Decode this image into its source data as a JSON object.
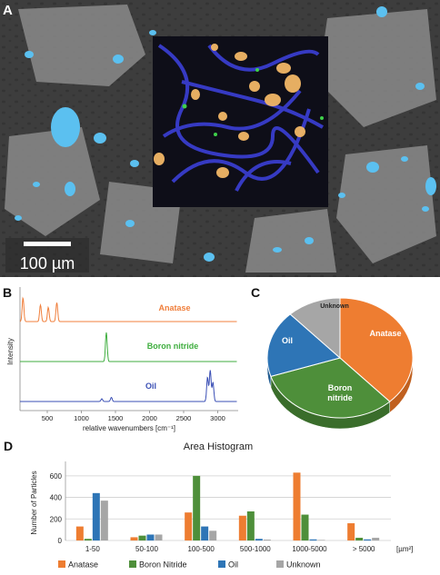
{
  "panels": {
    "a": {
      "letter": "A",
      "scalebar_label": "100 µm"
    },
    "b": {
      "letter": "B"
    },
    "c": {
      "letter": "C"
    },
    "d": {
      "letter": "D"
    }
  },
  "colors": {
    "anatase": "#ee7d31",
    "boron_nitride": "#4e8f3a",
    "oil": "#2e75b6",
    "unknown": "#a6a6a6",
    "raman_anatase": "#f07f3c",
    "raman_bn": "#3fae3f",
    "raman_oil": "#3a4fb5"
  },
  "chart_data": [
    {
      "type": "line",
      "panel": "B",
      "xlabel": "relative wavenumbers [cm⁻¹]",
      "ylabel": "Intensity",
      "xlim": [
        100,
        3300
      ],
      "xticks": [
        500,
        1000,
        1500,
        2000,
        2500,
        3000
      ],
      "series": [
        {
          "name": "Anatase",
          "peaks": [
            [
              144,
              1.0
            ],
            [
              400,
              0.7
            ],
            [
              515,
              0.6
            ],
            [
              640,
              0.8
            ]
          ]
        },
        {
          "name": "Boron nitride",
          "peaks": [
            [
              1366,
              1.0
            ]
          ]
        },
        {
          "name": "Oil",
          "peaks": [
            [
              1440,
              0.12
            ],
            [
              1300,
              0.08
            ],
            [
              2850,
              0.7
            ],
            [
              2890,
              0.9
            ],
            [
              2930,
              0.55
            ]
          ]
        }
      ]
    },
    {
      "type": "pie",
      "panel": "C",
      "labels": [
        "Anatase",
        "Boron nitride",
        "Oil",
        "Unknown"
      ],
      "values": [
        38,
        32,
        18,
        12
      ]
    },
    {
      "type": "bar",
      "panel": "D",
      "title": "Area Histogram",
      "ylabel": "Number of Particles",
      "categories": [
        "1-50",
        "50-100",
        "100-500",
        "500-1000",
        "1000-5000",
        "> 5000"
      ],
      "category_unit": "[µm²]",
      "ylim": [
        0,
        700
      ],
      "yticks": [
        0,
        200,
        400,
        600
      ],
      "series": [
        {
          "name": "Anatase",
          "values": [
            130,
            30,
            260,
            230,
            630,
            160
          ]
        },
        {
          "name": "Boron Nitride",
          "values": [
            15,
            45,
            600,
            270,
            240,
            25
          ]
        },
        {
          "name": "Oil",
          "values": [
            440,
            55,
            130,
            15,
            10,
            10
          ]
        },
        {
          "name": "Unknown",
          "values": [
            370,
            55,
            90,
            8,
            5,
            25
          ]
        }
      ]
    }
  ]
}
